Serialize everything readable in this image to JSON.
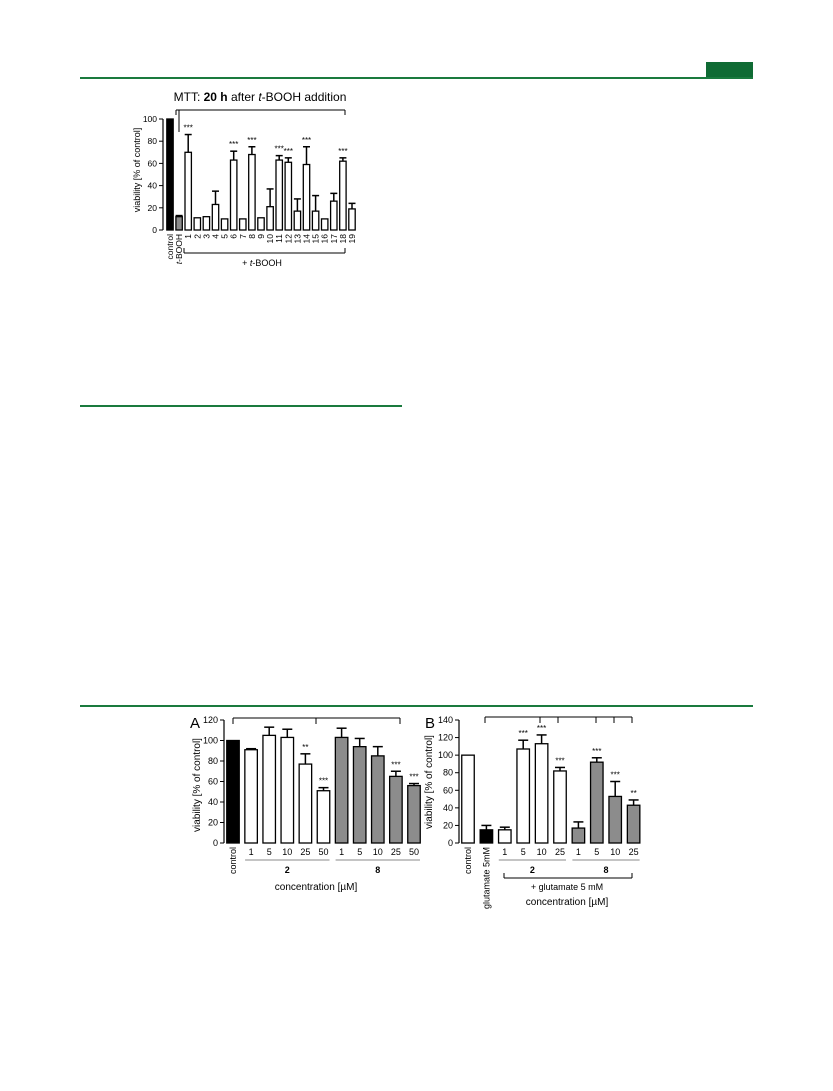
{
  "colors": {
    "green_rule": "#1a7a3e",
    "green_tab": "#0f6b34",
    "black_bar": "#000000",
    "grey_bar": "#8c8c8c",
    "white_bar": "#ffffff"
  },
  "chart_data": [
    {
      "type": "bar",
      "title_prefix": "MTT: ",
      "title_bold": "20 h",
      "title_mid": " after ",
      "title_italic": "t",
      "title_suffix": "-BOOH addition",
      "ylabel": "viability [% of control]",
      "ylim": [
        0,
        100
      ],
      "yticks": [
        "0",
        "20",
        "40",
        "60",
        "80",
        "100"
      ],
      "categories": [
        "control",
        "t-BOOH",
        "1",
        "2",
        "3",
        "4",
        "5",
        "6",
        "7",
        "8",
        "9",
        "10",
        "11",
        "12",
        "13",
        "14",
        "15",
        "16",
        "17",
        "18",
        "19"
      ],
      "values": [
        100,
        12,
        70,
        11,
        12,
        23,
        10,
        63,
        10,
        68,
        11,
        21,
        63,
        61,
        17,
        59,
        17,
        10,
        26,
        62,
        19
      ],
      "errors": [
        0,
        1,
        16,
        0,
        0,
        12,
        0,
        8,
        0,
        7,
        0,
        16,
        4,
        4,
        11,
        16,
        14,
        0,
        7,
        3,
        5
      ],
      "fills": [
        "black",
        "grey",
        "white",
        "white",
        "white",
        "white",
        "white",
        "white",
        "white",
        "white",
        "white",
        "white",
        "white",
        "white",
        "white",
        "white",
        "white",
        "white",
        "white",
        "white",
        "white"
      ],
      "significance": [
        "",
        "",
        "***",
        "",
        "",
        "",
        "",
        "***",
        "",
        "***",
        "",
        "",
        "***",
        "***",
        "",
        "***",
        "",
        "",
        "",
        "***",
        ""
      ],
      "group_label_prefix": "+ ",
      "group_label_italic": "t",
      "group_label_suffix": "-BOOH"
    },
    {
      "type": "bar",
      "panel_label": "A",
      "ylabel": "viability [% of control]",
      "xlabel": "concentration [µM]",
      "ylim": [
        0,
        120
      ],
      "yticks": [
        "0",
        "20",
        "40",
        "60",
        "80",
        "100",
        "120"
      ],
      "categories": [
        "control",
        "1",
        "5",
        "10",
        "25",
        "50",
        "1",
        "5",
        "10",
        "25",
        "50"
      ],
      "values": [
        100,
        91,
        105,
        103,
        77,
        51,
        103,
        94,
        85,
        65,
        56
      ],
      "errors": [
        0,
        1,
        8,
        8,
        10,
        3,
        9,
        8,
        9,
        5,
        2
      ],
      "fills": [
        "black",
        "white",
        "white",
        "white",
        "white",
        "white",
        "grey",
        "grey",
        "grey",
        "grey",
        "grey"
      ],
      "significance": [
        "",
        "",
        "",
        "",
        "**",
        "***",
        "",
        "",
        "",
        "***",
        "***"
      ],
      "groups": [
        {
          "label": "2",
          "from": 1,
          "to": 5
        },
        {
          "label": "8",
          "from": 6,
          "to": 10
        }
      ]
    },
    {
      "type": "bar",
      "panel_label": "B",
      "ylabel": "viability [% of control]",
      "xlabel": "concentration [µM]",
      "ylim": [
        0,
        140
      ],
      "yticks": [
        "0",
        "20",
        "40",
        "60",
        "80",
        "100",
        "120",
        "140"
      ],
      "categories": [
        "control",
        "glutamate 5mM",
        "1",
        "5",
        "10",
        "25",
        "1",
        "5",
        "10",
        "25"
      ],
      "values": [
        100,
        15,
        15,
        107,
        113,
        82,
        17,
        92,
        53,
        43
      ],
      "errors": [
        0,
        5,
        3,
        10,
        10,
        4,
        7,
        5,
        17,
        6
      ],
      "fills": [
        "white",
        "black",
        "white",
        "white",
        "white",
        "white",
        "grey",
        "grey",
        "grey",
        "grey"
      ],
      "significance": [
        "",
        "",
        "",
        "***",
        "***",
        "***",
        "",
        "***",
        "***",
        "**"
      ],
      "groups": [
        {
          "label": "2",
          "from": 2,
          "to": 5
        },
        {
          "label": "8",
          "from": 6,
          "to": 9
        }
      ],
      "group_bracket_label": "+ glutamate 5 mM"
    }
  ]
}
